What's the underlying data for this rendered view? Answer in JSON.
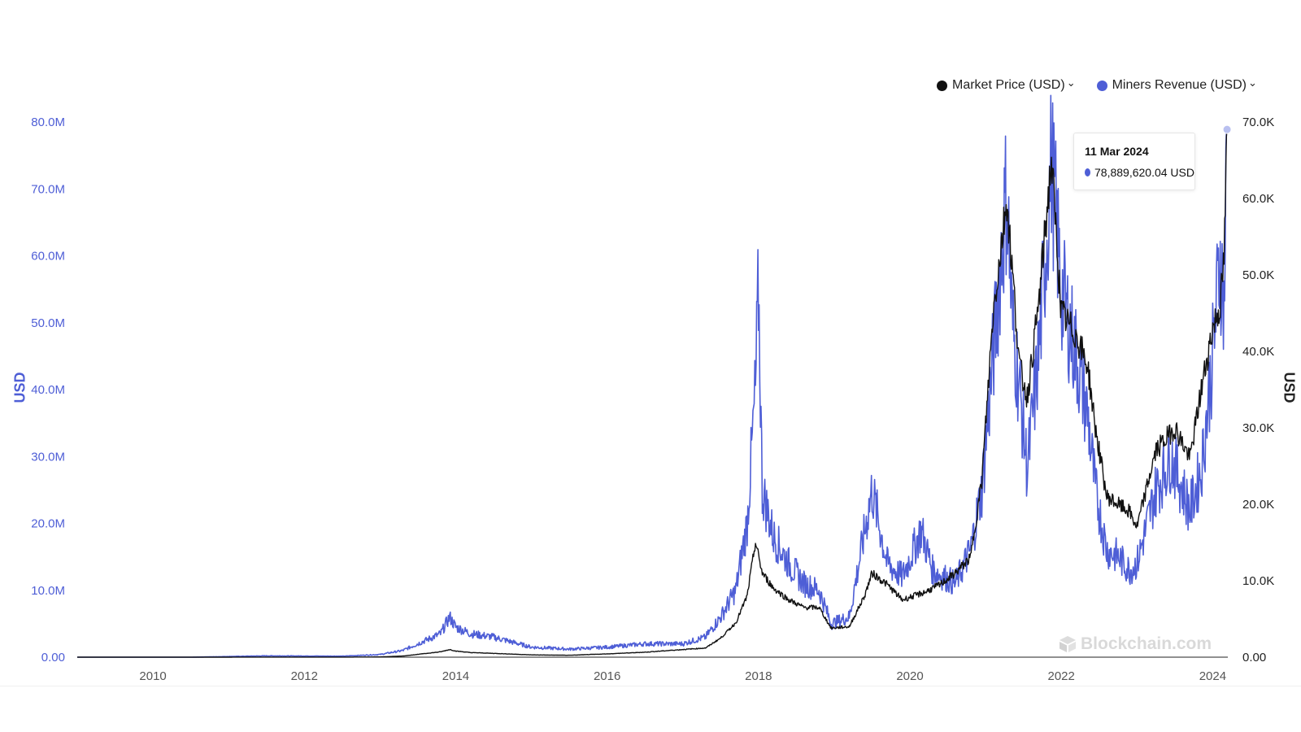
{
  "legend": {
    "items": [
      {
        "label": "Market Price (USD)",
        "color": "#111111"
      },
      {
        "label": "Miners Revenue (USD)",
        "color": "#4e5ed6"
      }
    ],
    "chevron": "❯"
  },
  "tooltip": {
    "date": "11 Mar 2024",
    "value": "78,889,620.04 USD"
  },
  "watermark": "Blockchain.com",
  "chart_data": {
    "type": "line",
    "y_left": {
      "label": "USD",
      "range": [
        0,
        80000000
      ],
      "ticks": [
        "0.00",
        "10.0M",
        "20.0M",
        "30.0M",
        "40.0M",
        "50.0M",
        "60.0M",
        "70.0M",
        "80.0M"
      ],
      "tick_values": [
        0,
        10000000,
        20000000,
        30000000,
        40000000,
        50000000,
        60000000,
        70000000,
        80000000
      ]
    },
    "y_right": {
      "label": "USD",
      "range": [
        0,
        70000
      ],
      "ticks": [
        "0.00",
        "10.0K",
        "20.0K",
        "30.0K",
        "40.0K",
        "50.0K",
        "60.0K",
        "70.0K"
      ],
      "tick_values": [
        0,
        10000,
        20000,
        30000,
        40000,
        50000,
        60000,
        70000
      ]
    },
    "x_axis": {
      "range": [
        2009.0,
        2024.2
      ],
      "ticks": [
        "2010",
        "2012",
        "2014",
        "2016",
        "2018",
        "2020",
        "2022",
        "2024"
      ],
      "tick_values": [
        2010,
        2012,
        2014,
        2016,
        2018,
        2020,
        2022,
        2024
      ]
    },
    "series": [
      {
        "name": "Market Price (USD)",
        "axis": "right",
        "color": "#111111",
        "x": [
          2009.0,
          2010.5,
          2011.5,
          2012.5,
          2013.0,
          2013.3,
          2013.8,
          2013.92,
          2014.0,
          2014.2,
          2014.5,
          2015.0,
          2015.5,
          2016.0,
          2016.5,
          2017.0,
          2017.3,
          2017.5,
          2017.7,
          2017.85,
          2017.96,
          2018.05,
          2018.2,
          2018.4,
          2018.6,
          2018.8,
          2018.96,
          2019.2,
          2019.4,
          2019.5,
          2019.7,
          2019.9,
          2020.2,
          2020.4,
          2020.6,
          2020.8,
          2020.95,
          2021.1,
          2021.28,
          2021.45,
          2021.55,
          2021.7,
          2021.87,
          2022.0,
          2022.2,
          2022.35,
          2022.45,
          2022.6,
          2022.75,
          2022.9,
          2023.0,
          2023.25,
          2023.5,
          2023.7,
          2023.85,
          2024.0,
          2024.1,
          2024.15,
          2024.19
        ],
        "y": [
          0,
          0,
          10,
          10,
          30,
          150,
          700,
          1000,
          800,
          600,
          500,
          300,
          250,
          430,
          650,
          1000,
          1200,
          2500,
          4500,
          8000,
          15000,
          11000,
          9000,
          7500,
          6500,
          6500,
          3800,
          4000,
          8000,
          11000,
          9500,
          7500,
          8500,
          9500,
          11000,
          13000,
          23000,
          45000,
          60000,
          38000,
          34000,
          46000,
          65000,
          45000,
          42000,
          38000,
          30000,
          21000,
          20000,
          19000,
          17000,
          27000,
          30000,
          26000,
          35000,
          43000,
          46000,
          52000,
          69000
        ]
      },
      {
        "name": "Miners Revenue (USD)",
        "axis": "left",
        "color": "#4e5ed6",
        "x": [
          2009.0,
          2010.5,
          2011.5,
          2012.5,
          2013.0,
          2013.3,
          2013.8,
          2013.92,
          2014.0,
          2014.2,
          2014.5,
          2015.0,
          2015.5,
          2016.0,
          2016.5,
          2017.0,
          2017.3,
          2017.5,
          2017.7,
          2017.85,
          2017.96,
          2018.0,
          2018.05,
          2018.2,
          2018.4,
          2018.6,
          2018.8,
          2018.96,
          2019.2,
          2019.5,
          2019.7,
          2019.9,
          2020.15,
          2020.3,
          2020.6,
          2020.8,
          2020.95,
          2021.1,
          2021.28,
          2021.35,
          2021.45,
          2021.55,
          2021.7,
          2021.87,
          2022.0,
          2022.2,
          2022.35,
          2022.45,
          2022.6,
          2022.75,
          2022.9,
          2023.0,
          2023.25,
          2023.45,
          2023.7,
          2023.85,
          2024.0,
          2024.1,
          2024.15,
          2024.19
        ],
        "y": [
          0,
          0,
          200000,
          150000,
          400000,
          1000000,
          3500000,
          6000000,
          4500000,
          3500000,
          3000000,
          1500000,
          1200000,
          1500000,
          2000000,
          2000000,
          3000000,
          6000000,
          10000000,
          20000000,
          40000000,
          55000000,
          25000000,
          18000000,
          14000000,
          11000000,
          10000000,
          5000000,
          6000000,
          25000000,
          14000000,
          12000000,
          19000000,
          13000000,
          11000000,
          16000000,
          25000000,
          45000000,
          70000000,
          50000000,
          40000000,
          28000000,
          45000000,
          74000000,
          55000000,
          45000000,
          36000000,
          25000000,
          16000000,
          15000000,
          13000000,
          14000000,
          25000000,
          30000000,
          22000000,
          28000000,
          45000000,
          60000000,
          52000000,
          78889620
        ]
      }
    ]
  }
}
